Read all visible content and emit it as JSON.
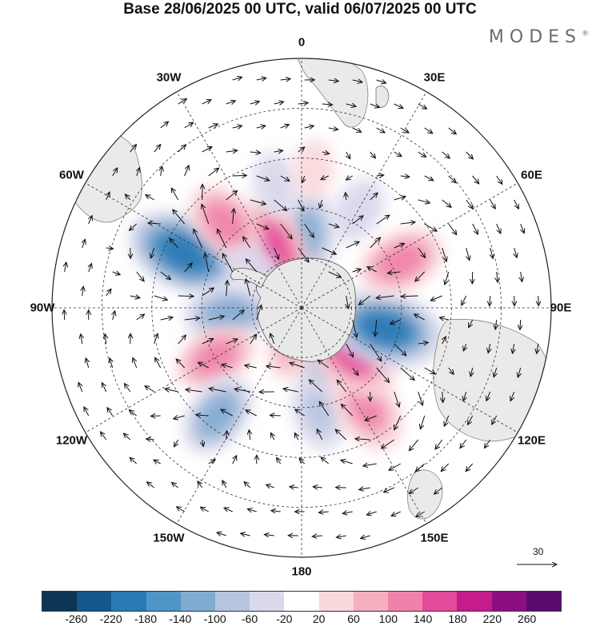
{
  "title": "Base 28/06/2025 00 UTC, valid 06/07/2025 00 UTC",
  "brand": "MODES",
  "brand_mark": "®",
  "longitude_labels": [
    {
      "text": "0",
      "lon": 0
    },
    {
      "text": "30E",
      "lon": 30
    },
    {
      "text": "60E",
      "lon": 60
    },
    {
      "text": "90E",
      "lon": 90
    },
    {
      "text": "120E",
      "lon": 120
    },
    {
      "text": "150E",
      "lon": 150
    },
    {
      "text": "180",
      "lon": 180
    },
    {
      "text": "150W",
      "lon": -150
    },
    {
      "text": "120W",
      "lon": -120
    },
    {
      "text": "90W",
      "lon": -90
    },
    {
      "text": "60W",
      "lon": -60
    },
    {
      "text": "30W",
      "lon": -30
    }
  ],
  "reference_vector": {
    "label": "30"
  },
  "colorbar": {
    "ticks": [
      "-260",
      "-220",
      "-180",
      "-140",
      "-100",
      "-60",
      "-20",
      "20",
      "60",
      "100",
      "140",
      "180",
      "220",
      "260"
    ],
    "colors": [
      "#0d3554",
      "#15578a",
      "#2a7ab5",
      "#4f96c7",
      "#81acd2",
      "#b6c4e0",
      "#dad9ec",
      "#ffffff",
      "#f9d7da",
      "#f5b0bf",
      "#ef82ab",
      "#e34b9b",
      "#c41c8b",
      "#8c0f81",
      "#5a0b6d"
    ]
  },
  "anomaly_centers": [
    {
      "lon": -65,
      "colat": 39,
      "value": -200
    },
    {
      "lon": -95,
      "colat": 22,
      "value": -120
    },
    {
      "lon": -120,
      "colat": 30,
      "value": 110
    },
    {
      "lon": -142,
      "colat": 41,
      "value": -110
    },
    {
      "lon": 170,
      "colat": 31,
      "value": -100
    },
    {
      "lon": 162,
      "colat": 16,
      "value": -70
    },
    {
      "lon": 147,
      "colat": 36,
      "value": 130
    },
    {
      "lon": 133,
      "colat": 20,
      "value": 170
    },
    {
      "lon": 104,
      "colat": 26,
      "value": -210
    },
    {
      "lon": 65,
      "colat": 33,
      "value": 120
    },
    {
      "lon": 30,
      "colat": 34,
      "value": -60
    },
    {
      "lon": 4,
      "colat": 22,
      "value": -130
    },
    {
      "lon": -26,
      "colat": 20,
      "value": 160
    },
    {
      "lon": -42,
      "colat": 34,
      "value": 120
    },
    {
      "lon": -12,
      "colat": 38,
      "value": -50
    },
    {
      "lon": 5,
      "colat": 42,
      "value": 30
    },
    {
      "lon": -50,
      "colat": 18,
      "value": -40
    },
    {
      "lon": -165,
      "colat": 12,
      "value": 60
    }
  ]
}
